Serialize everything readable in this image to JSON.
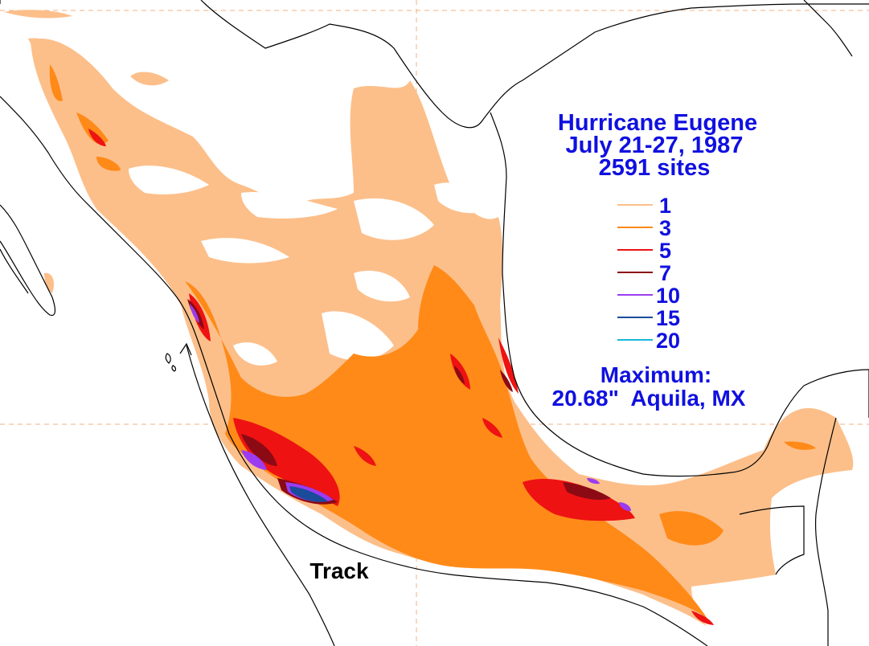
{
  "map": {
    "title_lines": [
      "Hurricane Eugene",
      "July 21-27, 1987",
      "2591 sites"
    ],
    "legend_items": [
      {
        "label": "1",
        "color": "#fcbf8a"
      },
      {
        "label": "3",
        "color": "#ff8a18"
      },
      {
        "label": "5",
        "color": "#ee1212"
      },
      {
        "label": "7",
        "color": "#8b0a14"
      },
      {
        "label": "10",
        "color": "#9b3cf0"
      },
      {
        "label": "15",
        "color": "#1a4c9a"
      },
      {
        "label": "20",
        "color": "#18b8d8"
      }
    ],
    "maximum_label": "Maximum:",
    "maximum_value": "20.68\"  Aquila, MX",
    "track_label": "Track",
    "colors": {
      "land_outline": "#000000",
      "gridlines": "#f0b080",
      "text": "#1010e0"
    }
  }
}
